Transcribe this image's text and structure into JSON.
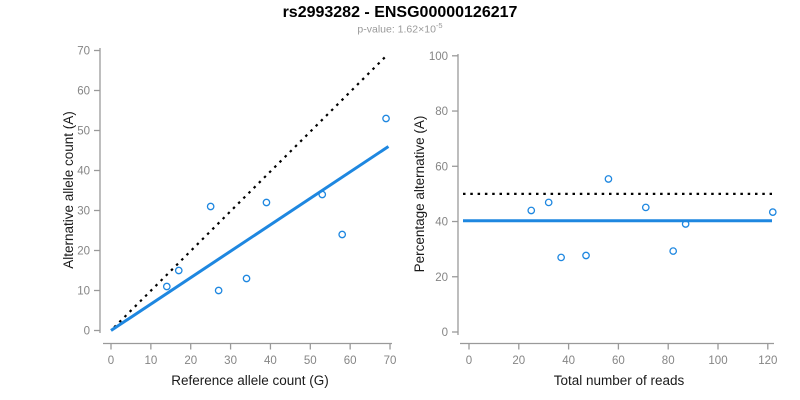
{
  "header": {
    "title": "rs2993282 - ENSG00000126217",
    "p_value_text": "p-value: 1.62×10",
    "p_value_exponent": "-5"
  },
  "colors": {
    "blue": "#1E87E0",
    "black": "#000000",
    "axis_line": "#9a9a9a",
    "tick_text": "#858585",
    "axis_title_text": "#1a1a1a"
  },
  "chart_data": [
    {
      "type": "scatter",
      "xlabel": "Reference allele count (G)",
      "ylabel": "Alternative allele count (A)",
      "xlim": [
        0,
        70
      ],
      "ylim": [
        0,
        70
      ],
      "xticks": [
        0,
        10,
        20,
        30,
        40,
        50,
        60,
        70
      ],
      "yticks": [
        0,
        10,
        20,
        30,
        40,
        50,
        60,
        70
      ],
      "grid": false,
      "points": [
        [
          14,
          11
        ],
        [
          17,
          15
        ],
        [
          25,
          31
        ],
        [
          27,
          10
        ],
        [
          34,
          13
        ],
        [
          39,
          32
        ],
        [
          53,
          34
        ],
        [
          58,
          24
        ],
        [
          69,
          53
        ]
      ],
      "lines": [
        {
          "name": "identity-line",
          "style": "dotted",
          "color": "black",
          "x1": 0.8,
          "y1": 0.8,
          "x2": 69,
          "y2": 68.6
        },
        {
          "name": "fit-line",
          "style": "solid",
          "color": "blue",
          "x1": 0,
          "y1": 0,
          "x2": 69.6,
          "y2": 46
        }
      ]
    },
    {
      "type": "scatter",
      "xlabel": "Total number of reads",
      "ylabel": "Percentage alternative (A)",
      "xlim": [
        0,
        122
      ],
      "ylim": [
        0,
        100
      ],
      "xticks": [
        0,
        20,
        40,
        60,
        80,
        100,
        120
      ],
      "yticks": [
        0,
        20,
        40,
        60,
        80,
        100
      ],
      "grid": false,
      "points": [
        [
          25,
          44
        ],
        [
          32,
          46.9
        ],
        [
          37,
          27
        ],
        [
          47,
          27.7
        ],
        [
          56,
          55.4
        ],
        [
          71,
          45.1
        ],
        [
          82,
          29.3
        ],
        [
          87,
          39.1
        ],
        [
          122,
          43.4
        ]
      ],
      "lines": [
        {
          "name": "fifty-percent-line",
          "style": "dotted",
          "color": "black",
          "hline": 50
        },
        {
          "name": "mean-percentage-line",
          "style": "solid",
          "color": "blue",
          "hline": 40.3
        }
      ]
    }
  ]
}
